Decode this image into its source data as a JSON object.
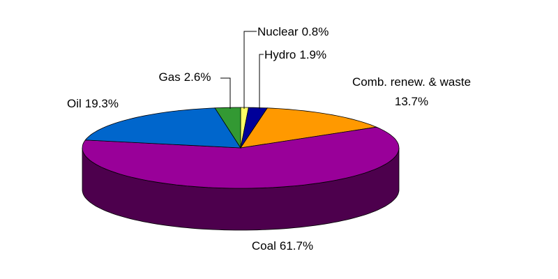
{
  "chart_data": {
    "type": "pie",
    "categories": [
      "Nuclear",
      "Hydro",
      "Comb. renew. & waste",
      "Coal",
      "Oil",
      "Gas"
    ],
    "values": [
      0.8,
      1.9,
      13.7,
      61.7,
      19.3,
      2.6
    ],
    "value_labels": [
      "0.8%",
      "1.9%",
      "13.7%",
      "61.7%",
      "19.3%",
      "2.6%"
    ],
    "colors": [
      "#ffff66",
      "#000099",
      "#ff9900",
      "#990099",
      "#0066cc",
      "#339933"
    ],
    "three_d": true
  }
}
